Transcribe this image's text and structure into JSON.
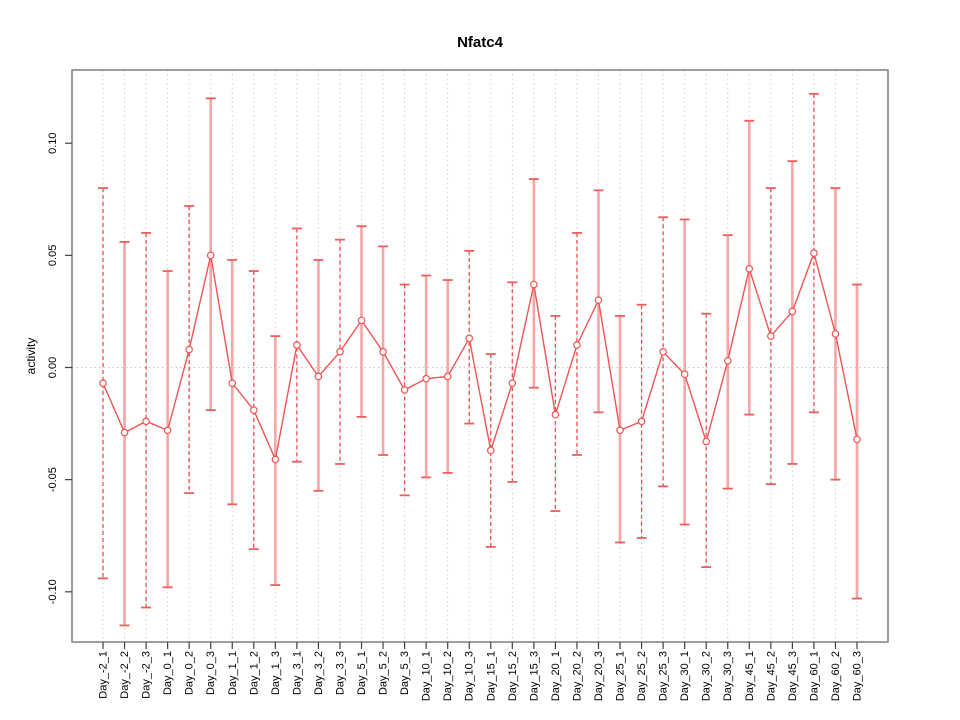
{
  "chart_data": {
    "type": "line",
    "title": "Nfatc4",
    "xlabel": "",
    "ylabel": "activity",
    "ylim": [
      -0.12,
      0.13
    ],
    "yticks": [
      0.1,
      0.05,
      0.0,
      -0.05,
      -0.1
    ],
    "ytick_labels": [
      "0.10",
      "0.05",
      "0.00",
      "-0.05",
      "-0.10"
    ],
    "grid": "vertical-dotted-per-category, dotted-zero-line",
    "legend": "none",
    "marker": "open-circle",
    "error_bars": true,
    "categories": [
      "Day_-2_1",
      "Day_-2_2",
      "Day_-2_3",
      "Day_0_1",
      "Day_0_2",
      "Day_0_3",
      "Day_1_1",
      "Day_1_2",
      "Day_1_3",
      "Day_3_1",
      "Day_3_2",
      "Day_3_3",
      "Day_5_1",
      "Day_5_2",
      "Day_5_3",
      "Day_10_1",
      "Day_10_2",
      "Day_10_3",
      "Day_15_1",
      "Day_15_2",
      "Day_15_3",
      "Day_20_1",
      "Day_20_2",
      "Day_20_3",
      "Day_25_1",
      "Day_25_2",
      "Day_25_3",
      "Day_30_1",
      "Day_30_2",
      "Day_30_3",
      "Day_45_1",
      "Day_45_2",
      "Day_45_3",
      "Day_60_1",
      "Day_60_2",
      "Day_60_3"
    ],
    "series": [
      {
        "name": "activity",
        "values": [
          -0.007,
          -0.029,
          -0.024,
          -0.028,
          0.008,
          0.05,
          -0.007,
          -0.019,
          -0.041,
          0.01,
          -0.004,
          0.007,
          0.021,
          0.007,
          -0.01,
          -0.005,
          -0.004,
          0.013,
          -0.037,
          -0.007,
          0.037,
          -0.021,
          0.01,
          0.03,
          -0.028,
          -0.024,
          0.007,
          -0.003,
          -0.033,
          0.003,
          0.044,
          0.014,
          0.025,
          0.051,
          0.015,
          -0.032
        ],
        "upper": [
          0.08,
          0.056,
          0.06,
          0.043,
          0.072,
          0.12,
          0.048,
          0.043,
          0.014,
          0.062,
          0.048,
          0.057,
          0.063,
          0.054,
          0.037,
          0.041,
          0.039,
          0.052,
          0.006,
          0.038,
          0.084,
          0.023,
          0.06,
          0.079,
          0.023,
          0.028,
          0.067,
          0.066,
          0.024,
          0.059,
          0.11,
          0.08,
          0.092,
          0.122,
          0.08,
          0.037
        ],
        "lower": [
          -0.094,
          -0.115,
          -0.107,
          -0.098,
          -0.056,
          -0.019,
          -0.061,
          -0.081,
          -0.097,
          -0.042,
          -0.055,
          -0.043,
          -0.022,
          -0.039,
          -0.057,
          -0.049,
          -0.047,
          -0.025,
          -0.08,
          -0.051,
          -0.009,
          -0.064,
          -0.039,
          -0.02,
          -0.078,
          -0.076,
          -0.053,
          -0.07,
          -0.089,
          -0.054,
          -0.021,
          -0.052,
          -0.043,
          -0.02,
          -0.05,
          -0.103
        ]
      }
    ],
    "colors": {
      "line": "#EE5555",
      "point_stroke": "#EE5555",
      "point_fill": "#FFFFFF",
      "error_solid": "#F7A6A6",
      "error_dashed": "#E85050",
      "cap": "#EE5E5E",
      "grid": "#CFCFCF",
      "zero_line": "#C8C8C8",
      "frame": "#7F7F7F",
      "tick": "#404040",
      "text": "#000000"
    },
    "style_hints": {
      "dashed_error_bars": [
        1,
        3,
        5,
        8,
        10,
        12,
        15,
        18,
        19,
        20,
        22,
        23,
        26,
        27,
        29,
        32,
        34
      ],
      "x_labels_rotated_deg": 90,
      "y_labels_rotated_deg": 90
    }
  }
}
